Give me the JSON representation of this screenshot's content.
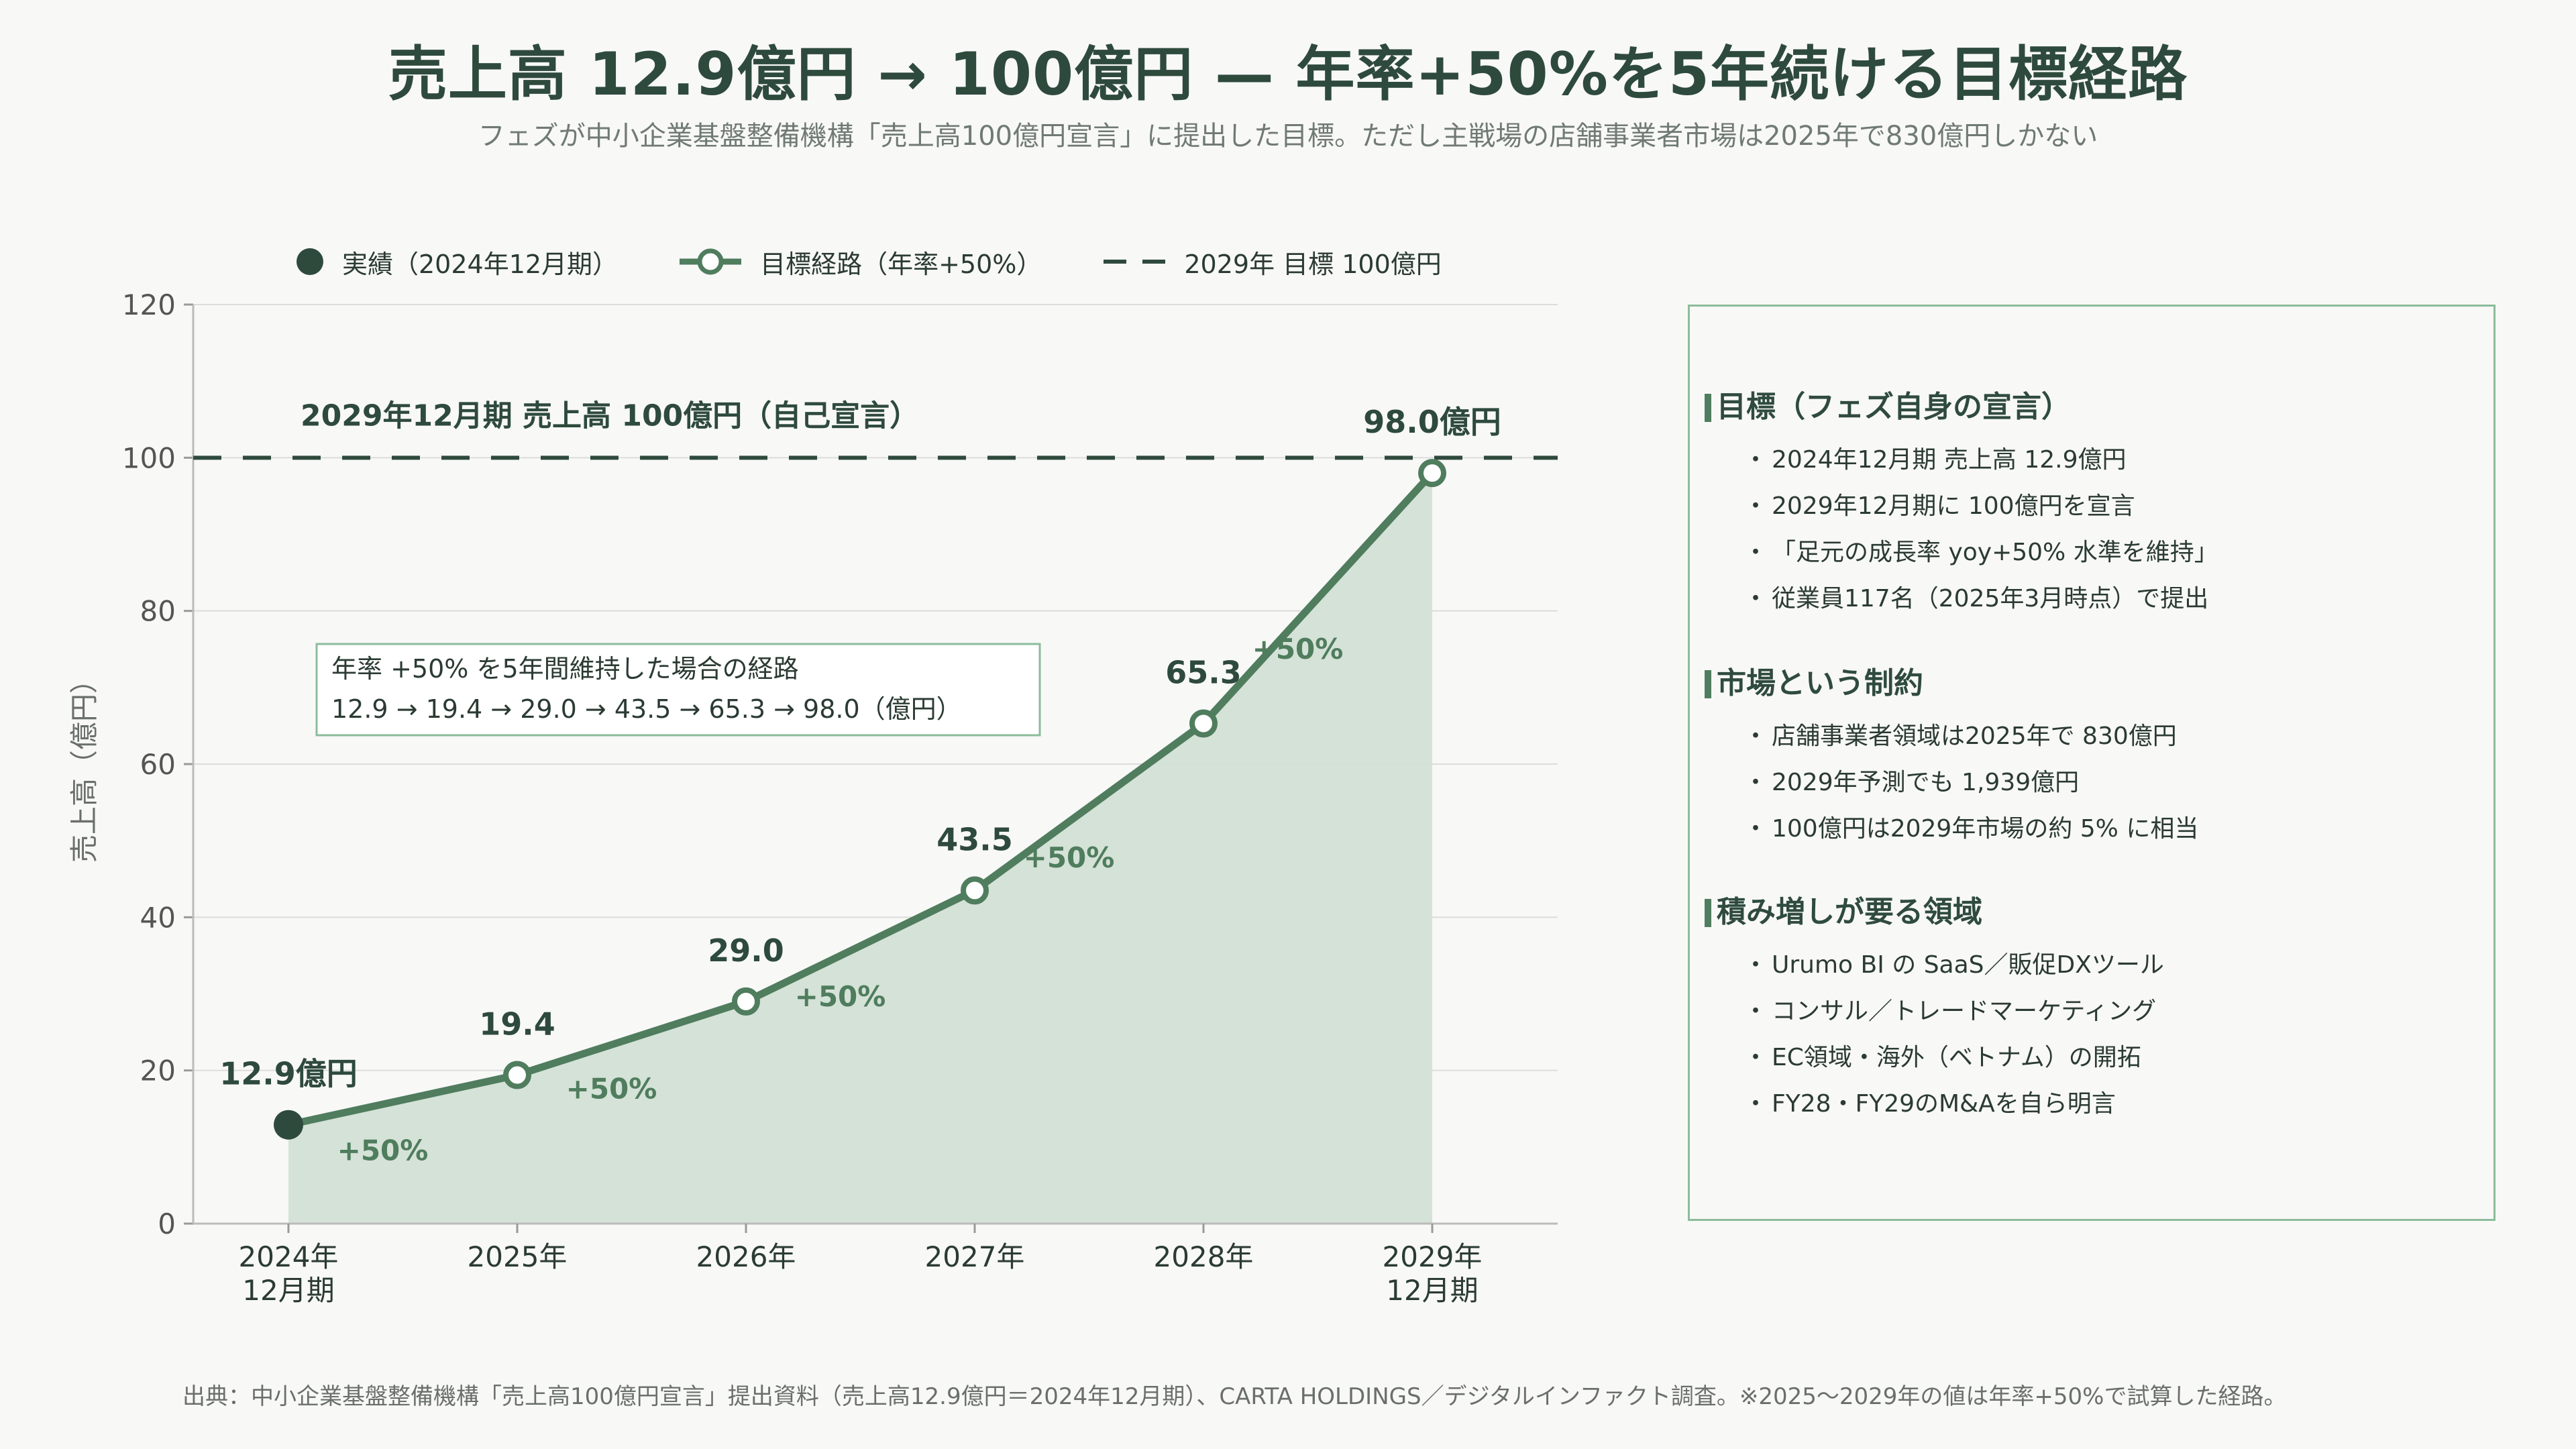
{
  "title": "売上高 12.9億円 → 100億円 — 年率+50%を5年続ける目標経路",
  "subtitle": "フェズが中小企業基盤整備機構「売上高100億円宣言」に提出した目標。ただし主戦場の店舗事業者市場は2025年で830億円しかない",
  "colors": {
    "dark": "#2e4a3d",
    "line": "#4f7d5e",
    "fill": "#d3e0d5",
    "grid": "#dcdcdc",
    "annotation_border": "#8cbc9a"
  },
  "chart_data": {
    "type": "line",
    "ylabel": "売上高（億円）",
    "ylim": [
      0,
      120
    ],
    "yticks": [
      "0",
      "20",
      "40",
      "60",
      "80",
      "100",
      "120"
    ],
    "grid": true,
    "legend_position": "top-left",
    "categories": [
      [
        "2024年",
        "12月期"
      ],
      [
        "2025年"
      ],
      [
        "2026年"
      ],
      [
        "2027年"
      ],
      [
        "2028年"
      ],
      [
        "2029年",
        "12月期"
      ]
    ],
    "series": [
      {
        "name": "目標経路（年率+50%）",
        "values": [
          12.9,
          19.4,
          29.0,
          43.5,
          65.3,
          98.0
        ],
        "point_labels": [
          "12.9億円",
          "19.4",
          "29.0",
          "43.5",
          "65.3",
          "98.0億円"
        ],
        "growth_labels": [
          "+50%",
          "+50%",
          "+50%",
          "+50%",
          "+50%"
        ]
      }
    ],
    "actual": {
      "name": "実績（2024年12月期）",
      "value": 12.9
    },
    "target": {
      "name": "2029年 目標 100億円",
      "value": 100,
      "label": "2029年12月期 売上高 100億円（自己宣言）"
    },
    "annotation": {
      "line1": "年率 +50% を5年間維持した場合の経路",
      "line2": "12.9 → 19.4 → 29.0 → 43.5 → 65.3 → 98.0（億円）"
    }
  },
  "panel": {
    "sections": [
      {
        "heading": "目標（フェズ自身の宣言）",
        "items": [
          "2024年12月期 売上高 12.9億円",
          "2029年12月期に 100億円を宣言",
          "「足元の成長率 yoy+50% 水準を維持」",
          "従業員117名（2025年3月時点）で提出"
        ]
      },
      {
        "heading": "市場という制約",
        "items": [
          "店舗事業者領域は2025年で 830億円",
          "2029年予測でも 1,939億円",
          "100億円は2029年市場の約 5% に相当"
        ]
      },
      {
        "heading": "積み増しが要る領域",
        "items": [
          "Urumo BI の SaaS／販促DXツール",
          "コンサル／トレードマーケティング",
          "EC領域・海外（ベトナム）の開拓",
          "FY28・FY29のM&Aを自ら明言"
        ]
      }
    ]
  },
  "source": "出典：中小企業基盤整備機構「売上高100億円宣言」提出資料（売上高12.9億円＝2024年12月期）、CARTA HOLDINGS／デジタルインファクト調査。※2025〜2029年の値は年率+50%で試算した経路。"
}
